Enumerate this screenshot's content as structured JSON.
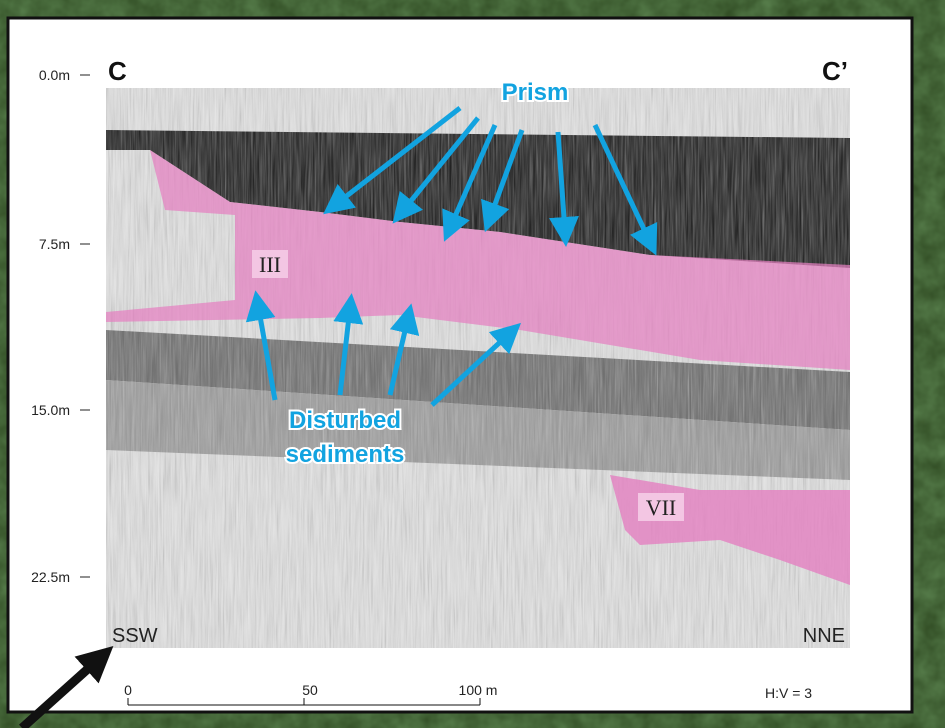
{
  "panel": {
    "left_label": "C",
    "right_label": "C’"
  },
  "depth_axis": {
    "labels": [
      "0.0m",
      "7.5m",
      "15.0m",
      "22.5m"
    ]
  },
  "annotations": {
    "prism": "Prism",
    "disturbed": [
      "Disturbed",
      "sediments"
    ],
    "unit_iii": "III",
    "unit_vii": "VII"
  },
  "directions": {
    "left": "SSW",
    "right": "NNE"
  },
  "scale_bar": {
    "labels": [
      "0",
      "50",
      "100 m"
    ],
    "ratio": "H:V = 3"
  }
}
